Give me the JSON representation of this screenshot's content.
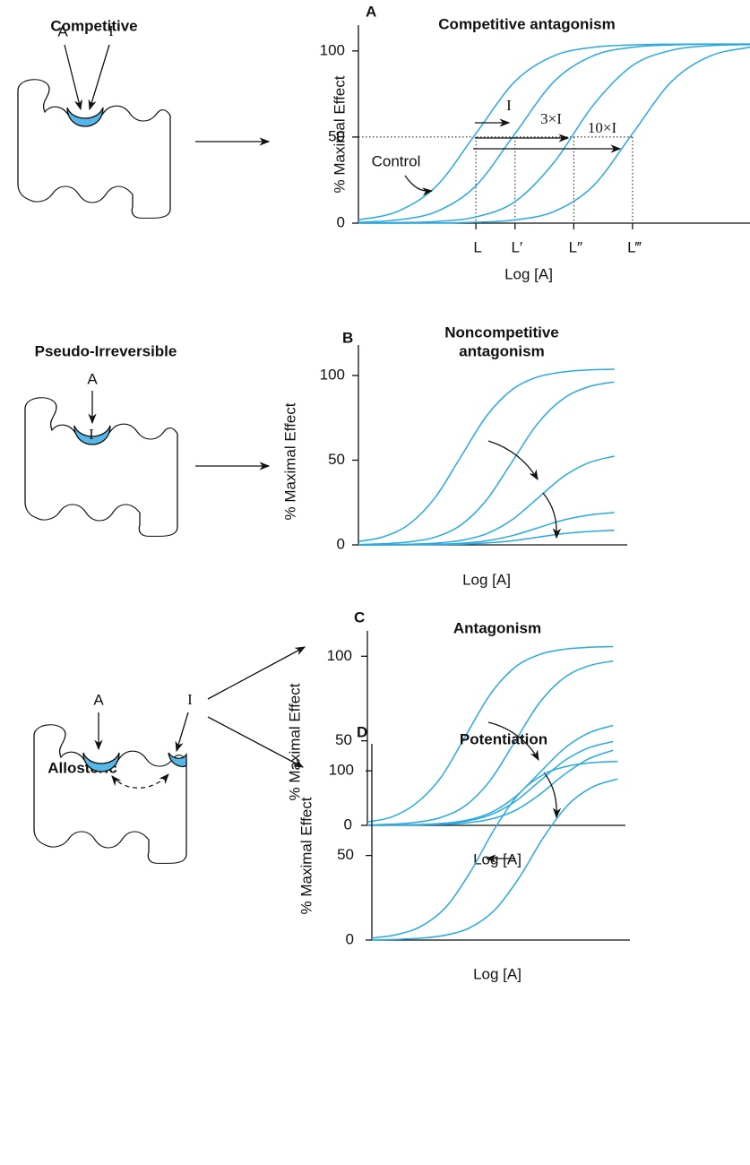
{
  "diagrams": [
    {
      "title": "Competitive",
      "labels": [
        "A",
        "I"
      ]
    },
    {
      "title": "Pseudo-Irreversible",
      "labels": [
        "A",
        "I"
      ]
    },
    {
      "title": "Allosteric",
      "labels": [
        "A",
        "I"
      ]
    }
  ],
  "chart_data": [
    {
      "type": "line",
      "panel": "A",
      "title": [
        "Competitive antagonism"
      ],
      "ylabel": "% Maximal Effect",
      "xlabel": "Log [A]",
      "x": [
        0,
        1,
        2,
        3,
        4,
        5,
        6,
        7,
        8,
        9,
        10
      ],
      "xlim": [
        0,
        10
      ],
      "ylim": [
        0,
        115
      ],
      "yticks": [
        0,
        50,
        100
      ],
      "color": "#29a9e1",
      "series": [
        {
          "values": [
            1.9,
            6.8,
            21.7,
            52,
            82.3,
            97.2,
            102.1,
            103.5,
            103.9,
            104,
            104
          ]
        },
        {
          "values": [
            0.5,
            1.9,
            6.8,
            21.7,
            52,
            82.3,
            97.2,
            102.1,
            103.5,
            103.9,
            104
          ]
        },
        {
          "values": [
            0.1,
            0.3,
            1.0,
            3.6,
            12.5,
            35.4,
            68.6,
            91.5,
            100.4,
            103.1,
            103.7
          ]
        },
        {
          "values": [
            0,
            0,
            0.1,
            0.5,
            1.9,
            6.8,
            21.7,
            52,
            82.3,
            97.2,
            102.1
          ]
        }
      ],
      "reference_level": 50,
      "x_markers": [
        {
          "value": 3,
          "label": "L"
        },
        {
          "value": 4,
          "label": "L′"
        },
        {
          "value": 5.5,
          "label": "L″"
        },
        {
          "value": 7,
          "label": "L‴"
        }
      ],
      "annotations": [
        "I",
        "3×I",
        "10×I",
        "Control"
      ]
    },
    {
      "type": "line",
      "panel": "B",
      "title": [
        "Noncompetitive",
        "antagonism"
      ],
      "ylabel": "% Maximal Effect",
      "xlabel": "Log [A]",
      "x": [
        0,
        1,
        2,
        3,
        4,
        5,
        6,
        7,
        8,
        9,
        10
      ],
      "xlim": [
        0,
        10.5
      ],
      "ylim": [
        0,
        118
      ],
      "yticks": [
        0,
        50,
        100
      ],
      "color": "#29a9e1",
      "series": [
        {
          "values": [
            1.9,
            4.9,
            12.4,
            28,
            52,
            76,
            91.6,
            99.1,
            102.1,
            103.3,
            103.7
          ]
        },
        {
          "values": [
            0.2,
            0.7,
            1.8,
            4.6,
            11.7,
            26.4,
            49,
            71.6,
            86.3,
            93.4,
            96.2
          ]
        },
        {
          "values": [
            0.1,
            0.1,
            0.4,
            1.0,
            2.6,
            6.5,
            14.8,
            27.5,
            40.2,
            48.5,
            52.4
          ]
        },
        {
          "values": [
            0,
            0,
            0.1,
            0.4,
            0.9,
            2.4,
            5.4,
            10,
            14.6,
            17.6,
            19.1
          ]
        },
        {
          "values": [
            0,
            0,
            0.1,
            0.2,
            0.4,
            1.1,
            2.4,
            4.5,
            6.6,
            7.9,
            8.6
          ]
        }
      ]
    },
    {
      "type": "line",
      "panel": "C",
      "title": [
        "Antagonism"
      ],
      "ylabel": "% Maximal Effect",
      "xlabel": "Log [A]",
      "x": [
        0,
        1,
        2,
        3,
        4,
        5,
        6,
        7,
        8,
        9,
        10
      ],
      "xlim": [
        0,
        10.5
      ],
      "ylim": [
        0,
        115
      ],
      "yticks": [
        0,
        50,
        100
      ],
      "color": "#29a9e1",
      "series": [
        {
          "values": [
            2,
            5,
            13.2,
            28.5,
            53,
            77.5,
            93.4,
            101,
            104.1,
            105.3,
            105.7
          ]
        },
        {
          "values": [
            0.2,
            0.7,
            1.8,
            4.7,
            11.8,
            26.6,
            49.5,
            72.4,
            87.2,
            94.3,
            97.2
          ]
        },
        {
          "values": [
            0.1,
            0.2,
            0.4,
            1.1,
            2.9,
            7.4,
            16.7,
            31,
            45.3,
            54.6,
            59.1
          ]
        },
        {
          "values": [
            0.1,
            0.1,
            0.3,
            1,
            2.4,
            6.2,
            14,
            26,
            38,
            45.8,
            49.6
          ]
        },
        {
          "values": [
            0,
            0.1,
            0.2,
            0.5,
            1.4,
            3.6,
            8.7,
            18.1,
            29.9,
            39.3,
            44.4
          ]
        }
      ]
    },
    {
      "type": "line",
      "panel": "D",
      "title": [
        "Potentiation"
      ],
      "ylabel": "% Maximal Effect",
      "xlabel": "Log [A]",
      "x": [
        0,
        1,
        2,
        3,
        4,
        5,
        6,
        7,
        8,
        9,
        10
      ],
      "xlim": [
        0,
        10.5
      ],
      "ylim": [
        0,
        116
      ],
      "yticks": [
        0,
        50,
        100
      ],
      "color": "#29a9e1",
      "series": [
        {
          "values": [
            1.2,
            3.2,
            8.1,
            19.3,
            40.1,
            65.9,
            86.7,
            98,
            102.9,
            104.9,
            105.6
          ]
        },
        {
          "values": [
            0.1,
            0.4,
            1.1,
            2.9,
            7.4,
            17.8,
            37,
            61,
            80.2,
            90.6,
            95.2
          ]
        }
      ]
    }
  ]
}
